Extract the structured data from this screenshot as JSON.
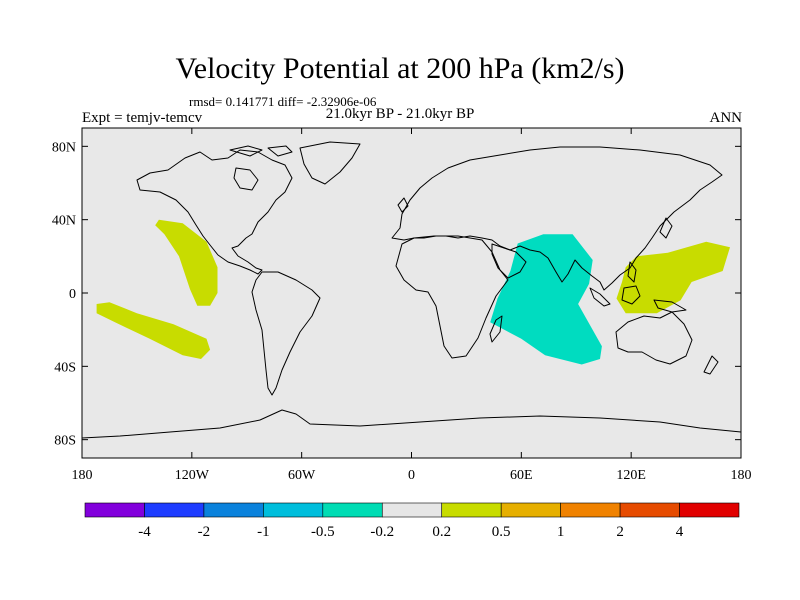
{
  "title": "Velocity Potential at 200 hPa (km2/s)",
  "stats": "rmsd= 0.141771  diff= -2.32906e-06",
  "experiment": "Expt = temjv-temcv",
  "period": "21.0kyr BP - 21.0kyr BP",
  "season": "ANN",
  "map": {
    "ocean_color": "#e8e8e8",
    "coast_color": "#000000",
    "lat_ticks": [
      {
        "lat": 80,
        "label": "80N"
      },
      {
        "lat": 40,
        "label": "40N"
      },
      {
        "lat": 0,
        "label": "0"
      },
      {
        "lat": -40,
        "label": "40S"
      },
      {
        "lat": -80,
        "label": "80S"
      }
    ],
    "lon_ticks": [
      {
        "lon": -180,
        "label": "180"
      },
      {
        "lon": -120,
        "label": "120W"
      },
      {
        "lon": -60,
        "label": "60W"
      },
      {
        "lon": 0,
        "label": "0"
      },
      {
        "lon": 60,
        "label": "60E"
      },
      {
        "lon": 120,
        "label": "120E"
      },
      {
        "lon": 180,
        "label": "180"
      }
    ],
    "anomalies": [
      {
        "name": "east-pacific-positive",
        "range": "0.2 to 0.5",
        "color": "#c8dc00",
        "lonlat": [
          [
            -138,
            40
          ],
          [
            -125,
            38
          ],
          [
            -112,
            28
          ],
          [
            -106,
            14
          ],
          [
            -106,
            0
          ],
          [
            -110,
            -7
          ],
          [
            -117,
            -7
          ],
          [
            -121,
            2
          ],
          [
            -127,
            20
          ],
          [
            -135,
            32
          ],
          [
            -140,
            37
          ]
        ]
      },
      {
        "name": "south-pacific-positive",
        "range": "0.2 to 0.5",
        "color": "#c8dc00",
        "lonlat": [
          [
            -172,
            -6
          ],
          [
            -165,
            -5
          ],
          [
            -150,
            -11
          ],
          [
            -130,
            -17
          ],
          [
            -112,
            -25
          ],
          [
            -110,
            -31
          ],
          [
            -115,
            -36
          ],
          [
            -125,
            -34
          ],
          [
            -143,
            -25
          ],
          [
            -162,
            -16
          ],
          [
            -172,
            -11
          ]
        ]
      },
      {
        "name": "indian-ocean-negative",
        "range": "-0.5 to -0.2",
        "color": "#00dcc0",
        "lonlat": [
          [
            58,
            27
          ],
          [
            72,
            32
          ],
          [
            88,
            32
          ],
          [
            99,
            18
          ],
          [
            97,
            5
          ],
          [
            91,
            -6
          ],
          [
            104,
            -29
          ],
          [
            103,
            -36
          ],
          [
            93,
            -39
          ],
          [
            73,
            -34
          ],
          [
            60,
            -25
          ],
          [
            43,
            -16
          ],
          [
            47,
            -3
          ],
          [
            54,
            12
          ]
        ]
      },
      {
        "name": "west-pacific-positive",
        "range": "0.2 to 0.5",
        "color": "#c8dc00",
        "lonlat": [
          [
            117,
            14
          ],
          [
            123,
            20
          ],
          [
            140,
            22
          ],
          [
            161,
            28
          ],
          [
            174,
            25
          ],
          [
            170,
            12
          ],
          [
            153,
            6
          ],
          [
            147,
            -4
          ],
          [
            134,
            -11
          ],
          [
            117,
            -11
          ],
          [
            112,
            -3
          ],
          [
            115,
            6
          ]
        ]
      }
    ]
  },
  "colorbar": {
    "colors": [
      "#8200dc",
      "#1e3cff",
      "#0a82dc",
      "#00bedc",
      "#00dcb4",
      "#e6e6e6",
      "#c8dc00",
      "#e6af00",
      "#f08200",
      "#e64b00",
      "#e10000"
    ],
    "labels": [
      "-4",
      "-2",
      "-1",
      "-0.5",
      "-0.2",
      "0.2",
      "0.5",
      "1",
      "2",
      "4"
    ]
  }
}
